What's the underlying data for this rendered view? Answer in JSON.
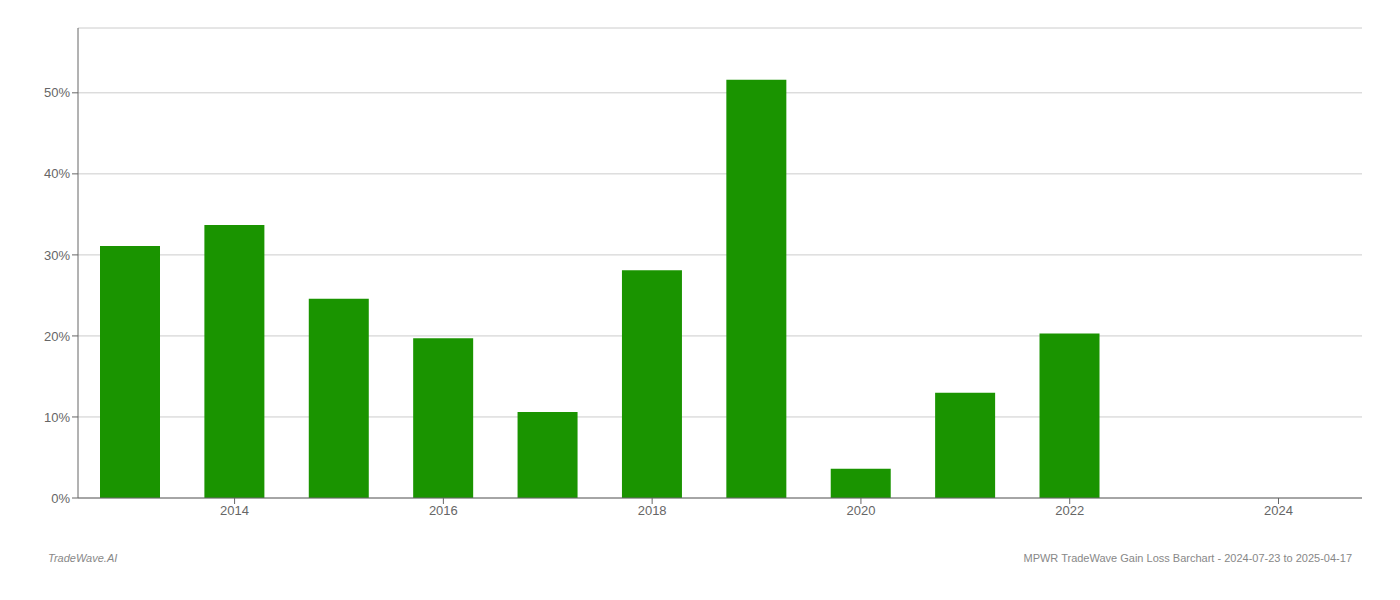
{
  "chart_data": {
    "type": "bar",
    "x": [
      2013,
      2014,
      2015,
      2016,
      2017,
      2018,
      2019,
      2020,
      2021,
      2022,
      2023
    ],
    "values": [
      0.311,
      0.337,
      0.246,
      0.197,
      0.106,
      0.281,
      0.516,
      0.036,
      0.13,
      0.203,
      0.0
    ],
    "color": "#1a9400",
    "xlim": [
      2012.5,
      2024.8
    ],
    "xticks": [
      2014,
      2016,
      2018,
      2020,
      2022,
      2024
    ],
    "ylim": [
      0,
      0.58
    ],
    "yticks": [
      {
        "value": 0,
        "label": "0%"
      },
      {
        "value": 0.1,
        "label": "10%"
      },
      {
        "value": 0.2,
        "label": "20%"
      },
      {
        "value": 0.3,
        "label": "30%"
      },
      {
        "value": 0.4,
        "label": "40%"
      },
      {
        "value": 0.5,
        "label": "50%"
      }
    ],
    "grid": true,
    "annotations": [
      "TradeWave.AI",
      "MPWR TradeWave Gain Loss Barchart - 2024-07-23 to 2025-04-17"
    ]
  }
}
